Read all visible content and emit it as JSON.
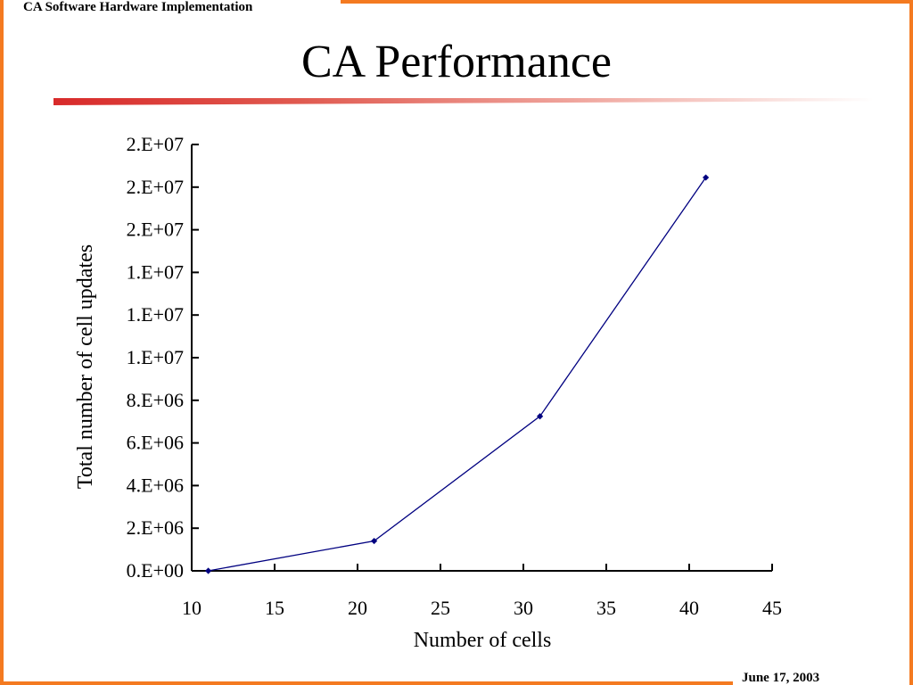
{
  "header": {
    "label": "CA Software Hardware Implementation"
  },
  "slide": {
    "title": "CA Performance",
    "date": "June 17, 2003"
  },
  "colors": {
    "frame": "#f47a20",
    "series": "#000080"
  },
  "chart_data": {
    "type": "line",
    "title": "",
    "xlabel": "Number of cells",
    "ylabel": "Total number of cell updates",
    "xlim": [
      10,
      45
    ],
    "ylim": [
      0,
      20000000
    ],
    "grid": false,
    "x_ticks": [
      {
        "value": 10,
        "label": "10"
      },
      {
        "value": 15,
        "label": "15"
      },
      {
        "value": 20,
        "label": "20"
      },
      {
        "value": 25,
        "label": "25"
      },
      {
        "value": 30,
        "label": "30"
      },
      {
        "value": 35,
        "label": "35"
      },
      {
        "value": 40,
        "label": "40"
      },
      {
        "value": 45,
        "label": "45"
      }
    ],
    "y_ticks": [
      {
        "value": 0,
        "label": "0.E+00"
      },
      {
        "value": 2000000,
        "label": "2.E+06"
      },
      {
        "value": 4000000,
        "label": "4.E+06"
      },
      {
        "value": 6000000,
        "label": "6.E+06"
      },
      {
        "value": 8000000,
        "label": "8.E+06"
      },
      {
        "value": 10000000,
        "label": "1.E+07"
      },
      {
        "value": 12000000,
        "label": "1.E+07"
      },
      {
        "value": 14000000,
        "label": "1.E+07"
      },
      {
        "value": 16000000,
        "label": "2.E+07"
      },
      {
        "value": 18000000,
        "label": "2.E+07"
      },
      {
        "value": 20000000,
        "label": "2.E+07"
      }
    ],
    "series": [
      {
        "x": [
          11,
          21,
          31,
          41
        ],
        "y": [
          0,
          1400000,
          7250000,
          18450000
        ]
      }
    ]
  }
}
